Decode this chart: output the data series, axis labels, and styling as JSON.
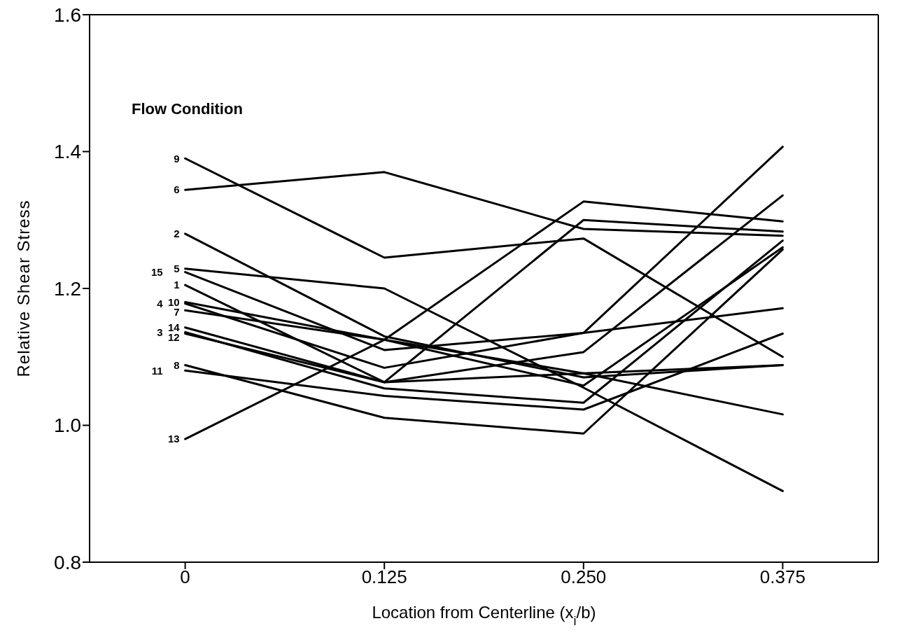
{
  "chart_data": {
    "type": "line",
    "xlabel": "Location from Centerline (x$_{i}$/b)",
    "ylabel": "Relative Shear Stress",
    "annotations": [
      "Flow Condition"
    ],
    "x": [
      0,
      0.125,
      0.25,
      0.375
    ],
    "xlim": [
      -0.06,
      0.435
    ],
    "xticks": [
      {
        "value": 0,
        "label": "0"
      },
      0.125,
      {
        "value": 0.25,
        "label": "0.250"
      },
      0.375
    ],
    "ylim": [
      0.8,
      1.6
    ],
    "yticks": [
      0.8,
      {
        "value": 1,
        "label": "1.0"
      },
      1.2,
      1.4,
      1.6
    ],
    "grid": false,
    "legend": false,
    "marker": "none",
    "line_style": "solid",
    "series": [
      {
        "name": "9",
        "color": "#000000",
        "values": [
          1.39,
          1.245,
          1.273,
          1.1
        ]
      },
      {
        "name": "6",
        "color": "#000000",
        "values": [
          1.344,
          1.37,
          1.287,
          1.277
        ]
      },
      {
        "name": "2",
        "color": "#000000",
        "values": [
          1.28,
          1.13,
          1.07,
          1.088
        ]
      },
      {
        "name": "5",
        "color": "#000000",
        "values": [
          1.229,
          1.2,
          1.055,
          0.904
        ]
      },
      {
        "name": "15",
        "color": "#000000",
        "values": [
          1.224,
          1.11,
          1.135,
          1.407
        ]
      },
      {
        "name": "1",
        "color": "#000000",
        "values": [
          1.205,
          1.063,
          1.3,
          1.283
        ]
      },
      {
        "name": "10",
        "color": "#000000",
        "values": [
          1.18,
          1.125,
          1.058,
          1.26
        ]
      },
      {
        "name": "4",
        "color": "#000000",
        "values": [
          1.178,
          1.084,
          1.135,
          1.171
        ]
      },
      {
        "name": "7",
        "color": "#000000",
        "values": [
          1.168,
          1.125,
          1.076,
          1.016
        ]
      },
      {
        "name": "14",
        "color": "#000000",
        "values": [
          1.143,
          1.063,
          1.076,
          1.088
        ]
      },
      {
        "name": "3",
        "color": "#000000",
        "values": [
          1.136,
          1.054,
          1.033,
          1.27
        ]
      },
      {
        "name": "12",
        "color": "#000000",
        "values": [
          1.134,
          1.063,
          1.107,
          1.336
        ]
      },
      {
        "name": "8",
        "color": "#000000",
        "values": [
          1.088,
          1.011,
          0.988,
          1.257
        ]
      },
      {
        "name": "11",
        "color": "#000000",
        "values": [
          1.08,
          1.043,
          1.023,
          1.134
        ]
      },
      {
        "name": "13",
        "color": "#000000",
        "values": [
          0.98,
          1.125,
          1.327,
          1.298
        ]
      }
    ]
  }
}
